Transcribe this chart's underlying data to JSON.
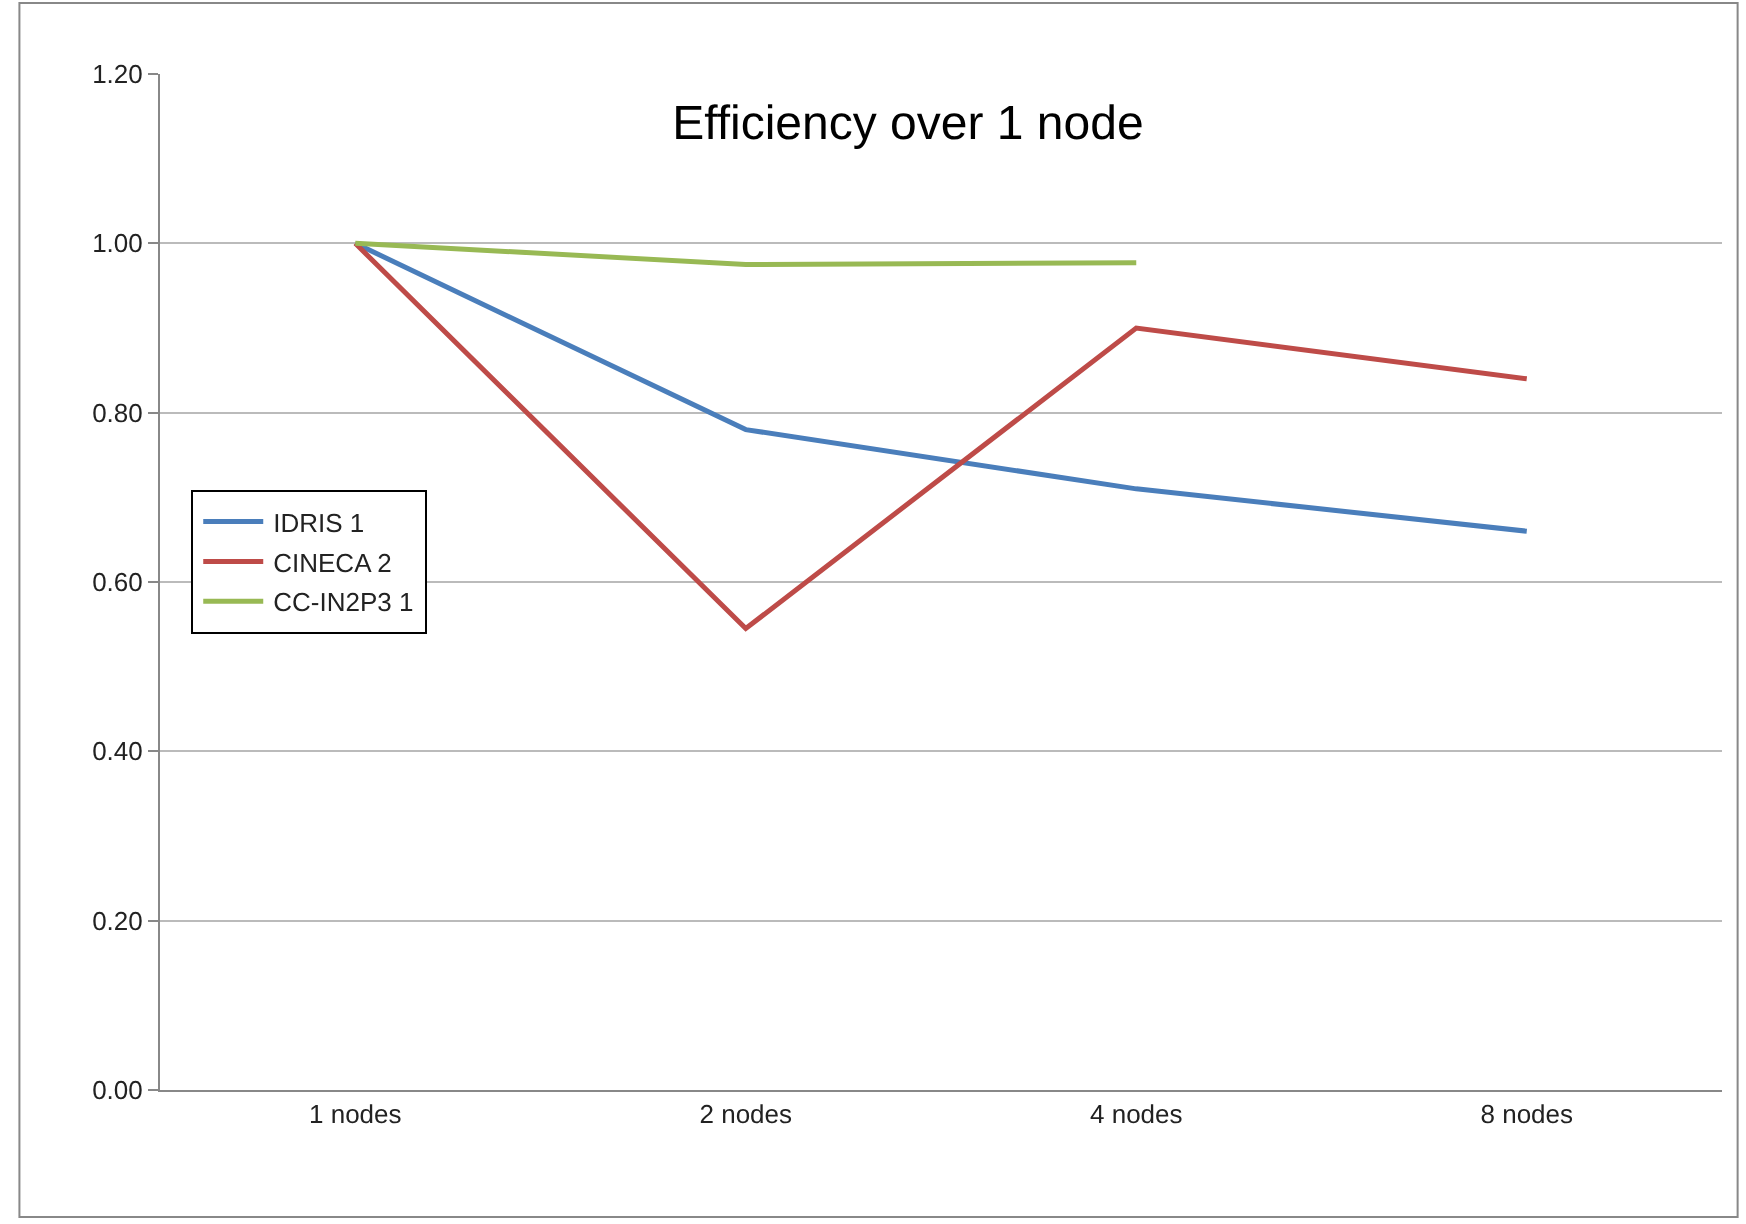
{
  "chart_data": {
    "type": "line",
    "title": "Efficiency over 1 node",
    "categories": [
      "1 nodes",
      "2 nodes",
      "4 nodes",
      "8 nodes"
    ],
    "series": [
      {
        "name": "IDRIS 1",
        "color": "#4a7ebb",
        "values": [
          1.0,
          0.78,
          0.71,
          0.66
        ]
      },
      {
        "name": "CINECA 2",
        "color": "#be4b48",
        "values": [
          1.0,
          0.545,
          0.9,
          0.84
        ]
      },
      {
        "name": "CC-IN2P3 1",
        "color": "#98b954",
        "values": [
          1.0,
          0.975,
          0.977,
          null
        ]
      }
    ],
    "ylim": [
      0,
      1.2
    ],
    "yticks": [
      {
        "value": 0,
        "label": "0.00"
      },
      {
        "value": 0.2,
        "label": "0.20"
      },
      {
        "value": 0.4,
        "label": "0.40"
      },
      {
        "value": 0.6,
        "label": "0.60"
      },
      {
        "value": 0.8,
        "label": "0.80"
      },
      {
        "value": 1.0,
        "label": "1.00"
      },
      {
        "value": 1.2,
        "label": "1.20"
      }
    ],
    "grid": "y",
    "legend": "left",
    "marker": "none",
    "line_style": "solid"
  }
}
